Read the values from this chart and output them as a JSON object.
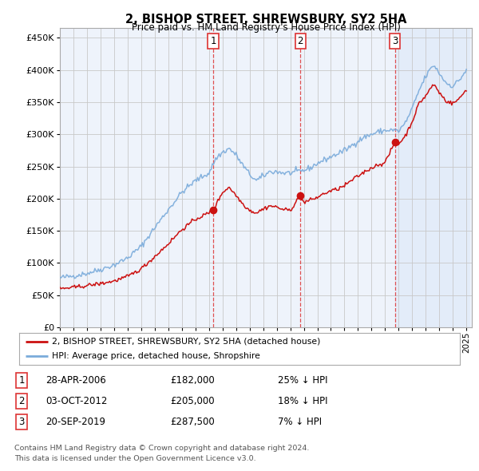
{
  "title": "2, BISHOP STREET, SHREWSBURY, SY2 5HA",
  "subtitle": "Price paid vs. HM Land Registry's House Price Index (HPI)",
  "ylabel_ticks": [
    "£0",
    "£50K",
    "£100K",
    "£150K",
    "£200K",
    "£250K",
    "£300K",
    "£350K",
    "£400K",
    "£450K"
  ],
  "ytick_values": [
    0,
    50000,
    100000,
    150000,
    200000,
    250000,
    300000,
    350000,
    400000,
    450000
  ],
  "ylim": [
    0,
    470000
  ],
  "legend_line1": "2, BISHOP STREET, SHREWSBURY, SY2 5HA (detached house)",
  "legend_line2": "HPI: Average price, detached house, Shropshire",
  "sale_points": [
    {
      "label": "1",
      "year": 2006.32,
      "price": 182000,
      "date": "28-APR-2006",
      "pct": "25%"
    },
    {
      "label": "2",
      "year": 2012.75,
      "price": 205000,
      "date": "03-OCT-2012",
      "pct": "18%"
    },
    {
      "label": "3",
      "year": 2019.72,
      "price": 287500,
      "date": "20-SEP-2019",
      "pct": "7%"
    }
  ],
  "table_rows": [
    {
      "num": "1",
      "date": "28-APR-2006",
      "price": "£182,000",
      "pct": "25% ↓ HPI"
    },
    {
      "num": "2",
      "date": "03-OCT-2012",
      "price": "£205,000",
      "pct": "18% ↓ HPI"
    },
    {
      "num": "3",
      "date": "20-SEP-2019",
      "price": "£287,500",
      "pct": "7% ↓ HPI"
    }
  ],
  "footnote1": "Contains HM Land Registry data © Crown copyright and database right 2024.",
  "footnote2": "This data is licensed under the Open Government Licence v3.0.",
  "hpi_color": "#7aabdb",
  "sale_color": "#cc1111",
  "background_color": "#ffffff",
  "plot_bg_color": "#eef3fb",
  "grid_color": "#c8c8c8",
  "vline_color": "#dd3333",
  "highlight_color": "#dde8f8",
  "hpi_anchors_t": [
    1995.0,
    1996.0,
    1997.0,
    1998.0,
    1999.0,
    2000.0,
    2001.0,
    2002.0,
    2003.0,
    2004.0,
    2005.0,
    2006.0,
    2006.5,
    2007.0,
    2007.5,
    2008.0,
    2008.5,
    2009.0,
    2009.5,
    2010.0,
    2010.5,
    2011.0,
    2011.5,
    2012.0,
    2012.5,
    2013.0,
    2013.5,
    2014.0,
    2014.5,
    2015.0,
    2015.5,
    2016.0,
    2016.5,
    2017.0,
    2017.5,
    2018.0,
    2018.5,
    2019.0,
    2019.5,
    2020.0,
    2020.5,
    2021.0,
    2021.5,
    2022.0,
    2022.3,
    2022.6,
    2023.0,
    2023.5,
    2024.0,
    2024.5,
    2025.0
  ],
  "hpi_anchors_p": [
    77000,
    80000,
    84000,
    90000,
    97000,
    108000,
    126000,
    155000,
    183000,
    210000,
    228000,
    240000,
    262000,
    272000,
    278000,
    268000,
    252000,
    238000,
    228000,
    235000,
    242000,
    242000,
    240000,
    240000,
    242000,
    244000,
    248000,
    255000,
    260000,
    265000,
    270000,
    275000,
    282000,
    290000,
    296000,
    300000,
    304000,
    306000,
    307000,
    305000,
    318000,
    340000,
    368000,
    390000,
    400000,
    408000,
    395000,
    380000,
    375000,
    385000,
    400000
  ],
  "prop_anchors_t": [
    1995.0,
    1996.0,
    1997.0,
    1998.0,
    1999.0,
    2000.0,
    2001.0,
    2002.0,
    2003.0,
    2004.0,
    2005.0,
    2006.0,
    2006.32,
    2007.0,
    2007.5,
    2008.0,
    2008.5,
    2009.0,
    2009.5,
    2010.0,
    2010.5,
    2011.0,
    2011.5,
    2012.0,
    2012.75,
    2013.0,
    2013.5,
    2014.0,
    2014.5,
    2015.0,
    2015.5,
    2016.0,
    2016.5,
    2017.0,
    2017.5,
    2018.0,
    2018.5,
    2019.0,
    2019.72,
    2020.0,
    2020.5,
    2021.0,
    2021.5,
    2022.0,
    2022.3,
    2022.6,
    2023.0,
    2023.5,
    2024.0,
    2024.5,
    2025.0
  ],
  "prop_anchors_p": [
    60000,
    62000,
    65000,
    68000,
    72000,
    79000,
    91000,
    110000,
    130000,
    152000,
    168000,
    178000,
    182000,
    210000,
    218000,
    205000,
    192000,
    182000,
    178000,
    184000,
    189000,
    187000,
    183000,
    182000,
    205000,
    194000,
    198000,
    202000,
    208000,
    212000,
    215000,
    220000,
    228000,
    235000,
    242000,
    248000,
    253000,
    256000,
    287500,
    285000,
    298000,
    320000,
    348000,
    360000,
    370000,
    378000,
    365000,
    352000,
    348000,
    356000,
    370000
  ]
}
